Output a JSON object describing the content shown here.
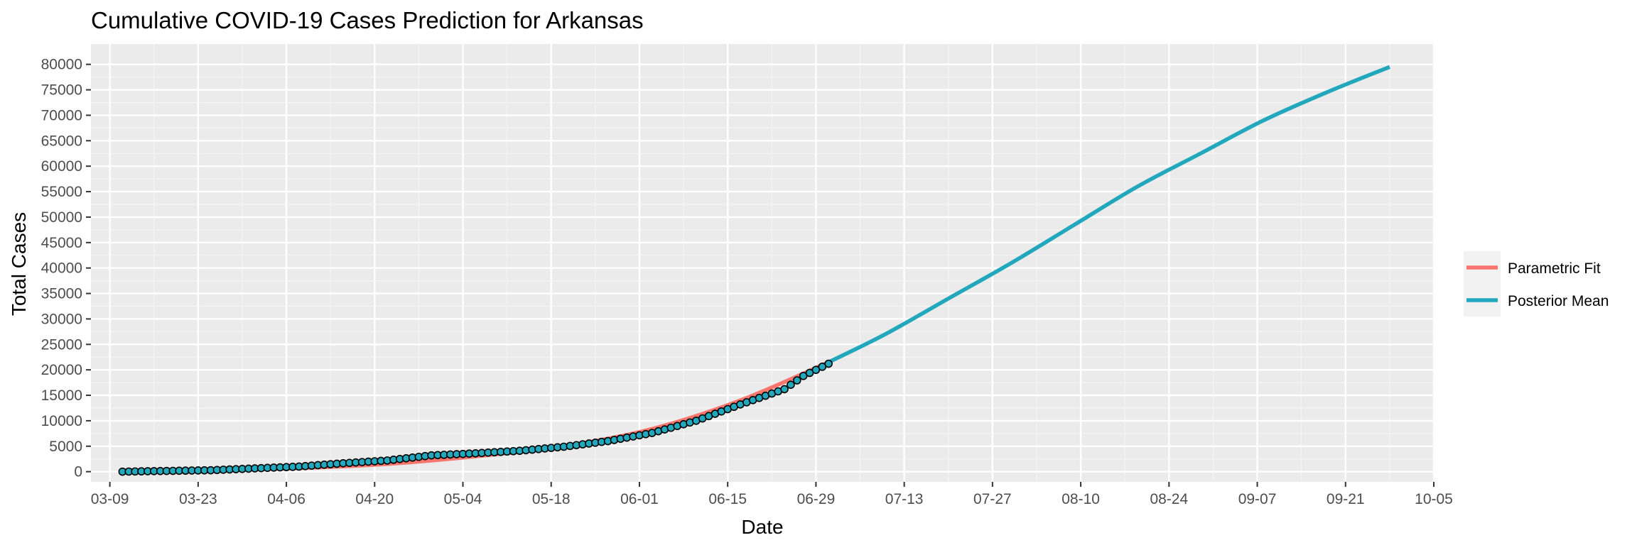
{
  "chart_data": {
    "type": "line",
    "title": "Cumulative COVID-19 Cases Prediction for Arkansas",
    "xlabel": "Date",
    "ylabel": "Total Cases",
    "x_tick_labels": [
      "03-09",
      "03-23",
      "04-06",
      "04-20",
      "05-04",
      "05-18",
      "06-01",
      "06-15",
      "06-29",
      "07-13",
      "07-27",
      "08-10",
      "08-24",
      "09-07",
      "09-21",
      "10-05"
    ],
    "x_tick_dates": [
      "2020-03-09",
      "2020-03-23",
      "2020-04-06",
      "2020-04-20",
      "2020-05-04",
      "2020-05-18",
      "2020-06-01",
      "2020-06-15",
      "2020-06-29",
      "2020-07-13",
      "2020-07-27",
      "2020-08-10",
      "2020-08-24",
      "2020-09-07",
      "2020-09-21",
      "2020-10-05"
    ],
    "xlim": [
      "2020-03-06",
      "2020-10-05"
    ],
    "ylim": [
      -2000,
      84000
    ],
    "y_ticks": [
      0,
      5000,
      10000,
      15000,
      20000,
      25000,
      30000,
      35000,
      40000,
      45000,
      50000,
      55000,
      60000,
      65000,
      70000,
      75000,
      80000
    ],
    "y_tick_labels": [
      "0",
      "5000",
      "10000",
      "15000",
      "20000",
      "25000",
      "30000",
      "35000",
      "40000",
      "45000",
      "50000",
      "55000",
      "60000",
      "65000",
      "70000",
      "75000",
      "80000"
    ],
    "grid": true,
    "legend": {
      "position": "right",
      "entries": [
        {
          "label": "Parametric Fit",
          "color": "#F8766D"
        },
        {
          "label": "Posterior Mean",
          "color": "#22A8BD"
        }
      ]
    },
    "series": [
      {
        "name": "Parametric Fit",
        "color": "#F8766D",
        "x": [
          "2020-03-11",
          "2020-03-25",
          "2020-04-08",
          "2020-04-22",
          "2020-05-06",
          "2020-05-20",
          "2020-06-03",
          "2020-06-17",
          "2020-07-01"
        ],
        "y": [
          250,
          350,
          700,
          1500,
          3000,
          5000,
          8400,
          14000,
          21500
        ]
      },
      {
        "name": "Posterior Mean",
        "color": "#22A8BD",
        "x": [
          "2020-07-01",
          "2020-07-10",
          "2020-07-20",
          "2020-07-30",
          "2020-08-09",
          "2020-08-19",
          "2020-08-29",
          "2020-09-08",
          "2020-09-18",
          "2020-09-28"
        ],
        "y": [
          21500,
          27000,
          34000,
          41000,
          48500,
          56000,
          62500,
          69000,
          74500,
          79500
        ]
      },
      {
        "name": "",
        "type": "scatter",
        "fill": "#22A8BD",
        "x": [
          "2020-03-11",
          "2020-03-25",
          "2020-04-08",
          "2020-04-15",
          "2020-04-22",
          "2020-04-29",
          "2020-05-06",
          "2020-05-13",
          "2020-05-20",
          "2020-05-27",
          "2020-06-03",
          "2020-06-10",
          "2020-06-17",
          "2020-06-24",
          "2020-06-27",
          "2020-07-01"
        ],
        "y": [
          0,
          280,
          1000,
          1650,
          2200,
          3200,
          3600,
          4100,
          4900,
          6000,
          7600,
          10000,
          13200,
          16200,
          18800,
          21200
        ]
      }
    ]
  }
}
